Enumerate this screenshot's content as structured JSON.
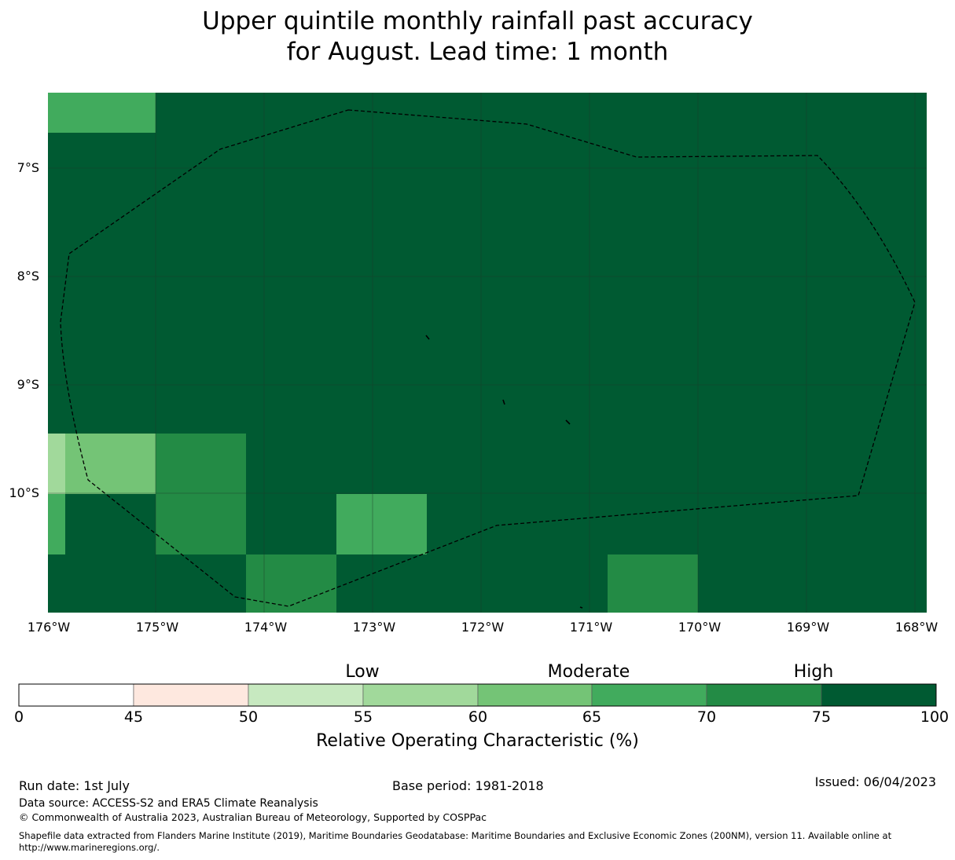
{
  "title": {
    "line1": "Upper quintile monthly rainfall past accuracy",
    "line2": "for August. Lead time: 1 month"
  },
  "map": {
    "lon_labels": [
      "176°W",
      "175°W",
      "174°W",
      "173°W",
      "172°W",
      "171°W",
      "170°W",
      "169°W",
      "168°W"
    ],
    "lat_labels": [
      "7°S",
      "8°S",
      "9°S",
      "10°S"
    ],
    "colors": {
      "c45": "#fee8df",
      "c50": "#c7e9c0",
      "c55": "#a1d99b",
      "c60": "#74c476",
      "c65": "#41ab5d",
      "c70": "#238b45",
      "c75": "#005a32"
    },
    "grid_cells_roc_band": [
      {
        "lon": [
          -176.0,
          -175.0
        ],
        "lat": [
          -6.2,
          -6.6
        ],
        "band": "65-70"
      },
      {
        "lon": [
          -176.0,
          -175.85
        ],
        "lat": [
          -9.45,
          -10.0
        ],
        "band": "55-60"
      },
      {
        "lon": [
          -175.85,
          -175.0
        ],
        "lat": [
          -9.45,
          -10.0
        ],
        "band": "60-65"
      },
      {
        "lon": [
          -175.0,
          -174.17
        ],
        "lat": [
          -9.45,
          -10.0
        ],
        "band": "70-75"
      },
      {
        "lon": [
          -176.0,
          -175.85
        ],
        "lat": [
          -10.0,
          -10.55
        ],
        "band": "65-70"
      },
      {
        "lon": [
          -175.0,
          -174.17
        ],
        "lat": [
          -10.0,
          -10.55
        ],
        "band": "70-75"
      },
      {
        "lon": [
          -173.34,
          -172.5
        ],
        "lat": [
          -10.0,
          -10.55
        ],
        "band": "65-70"
      },
      {
        "lon": [
          -174.17,
          -173.34
        ],
        "lat": [
          -10.55,
          -11.1
        ],
        "band": "70-75"
      },
      {
        "lon": [
          -170.84,
          -170.0
        ],
        "lat": [
          -10.55,
          -11.1
        ],
        "band": "70-75"
      }
    ],
    "background_band": "75-100"
  },
  "colorbar": {
    "categories": [
      "Low",
      "Moderate",
      "High"
    ],
    "ticks": [
      "0",
      "45",
      "50",
      "55",
      "60",
      "65",
      "70",
      "75",
      "100"
    ],
    "segment_colors": [
      "#ffffff",
      "#fee8df",
      "#c7e9c0",
      "#a1d99b",
      "#74c476",
      "#41ab5d",
      "#238b45",
      "#005a32"
    ],
    "label": "Relative Operating Characteristic (%)"
  },
  "footer": {
    "run_date": "Run date: 1st July",
    "base_period": "Base period: 1981-2018",
    "issued": "Issued: 06/04/2023",
    "data_source": "Data source: ACCESS-S2 and ERA5 Climate Reanalysis",
    "copyright": "© Commonwealth of Australia 2023, Australian Bureau of Meteorology, Supported by COSPPac",
    "shapefile_line1": "Shapefile data extracted from Flanders Marine Institute (2019), Maritime Boundaries Geodatabase: Maritime Boundaries and Exclusive Economic Zones (200NM), version 11. Available online at",
    "shapefile_line2": "http://www.marineregions.org/."
  }
}
